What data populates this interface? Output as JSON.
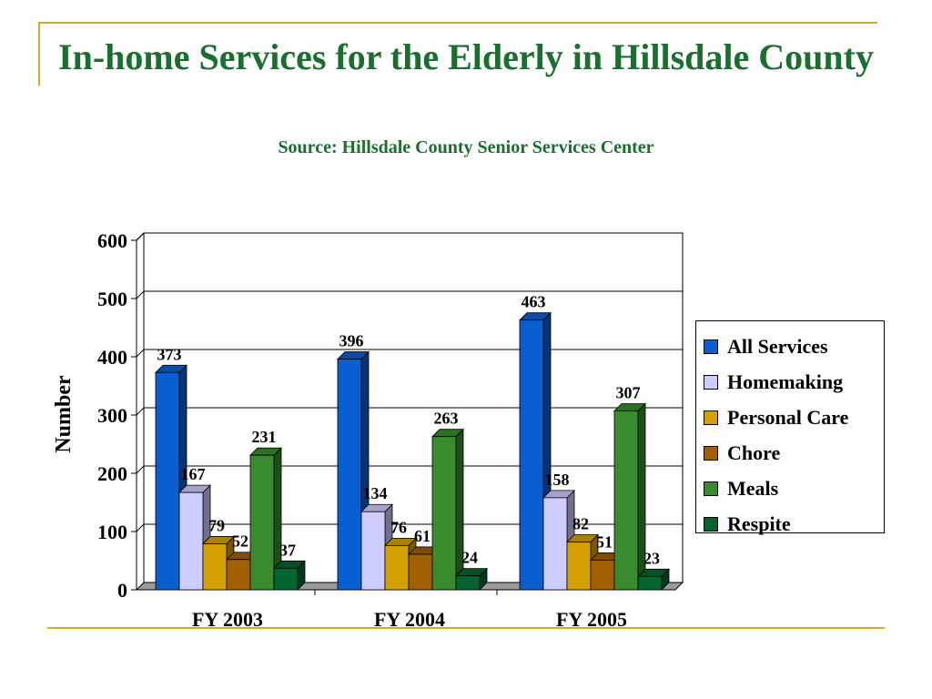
{
  "slide": {
    "title": "In-home Services for the Elderly in Hillsdale County",
    "subtitle": "Source: Hillsdale County Senior Services Center"
  },
  "chart_data": {
    "type": "bar",
    "title": "",
    "xlabel": "",
    "ylabel": "Number",
    "ylim": [
      0,
      600
    ],
    "yticks": [
      0,
      100,
      200,
      300,
      400,
      500,
      600
    ],
    "grid": true,
    "legend_position": "right",
    "categories": [
      "FY 2003",
      "FY 2004",
      "FY 2005"
    ],
    "series": [
      {
        "name": "All Services",
        "color": "#0a5fd0",
        "values": [
          373,
          396,
          463
        ]
      },
      {
        "name": "Homemaking",
        "color": "#ccccff",
        "values": [
          167,
          134,
          158
        ]
      },
      {
        "name": "Personal Care",
        "color": "#d4a000",
        "values": [
          79,
          76,
          82
        ]
      },
      {
        "name": "Chore",
        "color": "#a06000",
        "values": [
          52,
          61,
          51
        ]
      },
      {
        "name": "Meals",
        "color": "#3a8a2e",
        "values": [
          231,
          263,
          307
        ]
      },
      {
        "name": "Respite",
        "color": "#006630",
        "values": [
          37,
          24,
          23
        ]
      }
    ]
  }
}
